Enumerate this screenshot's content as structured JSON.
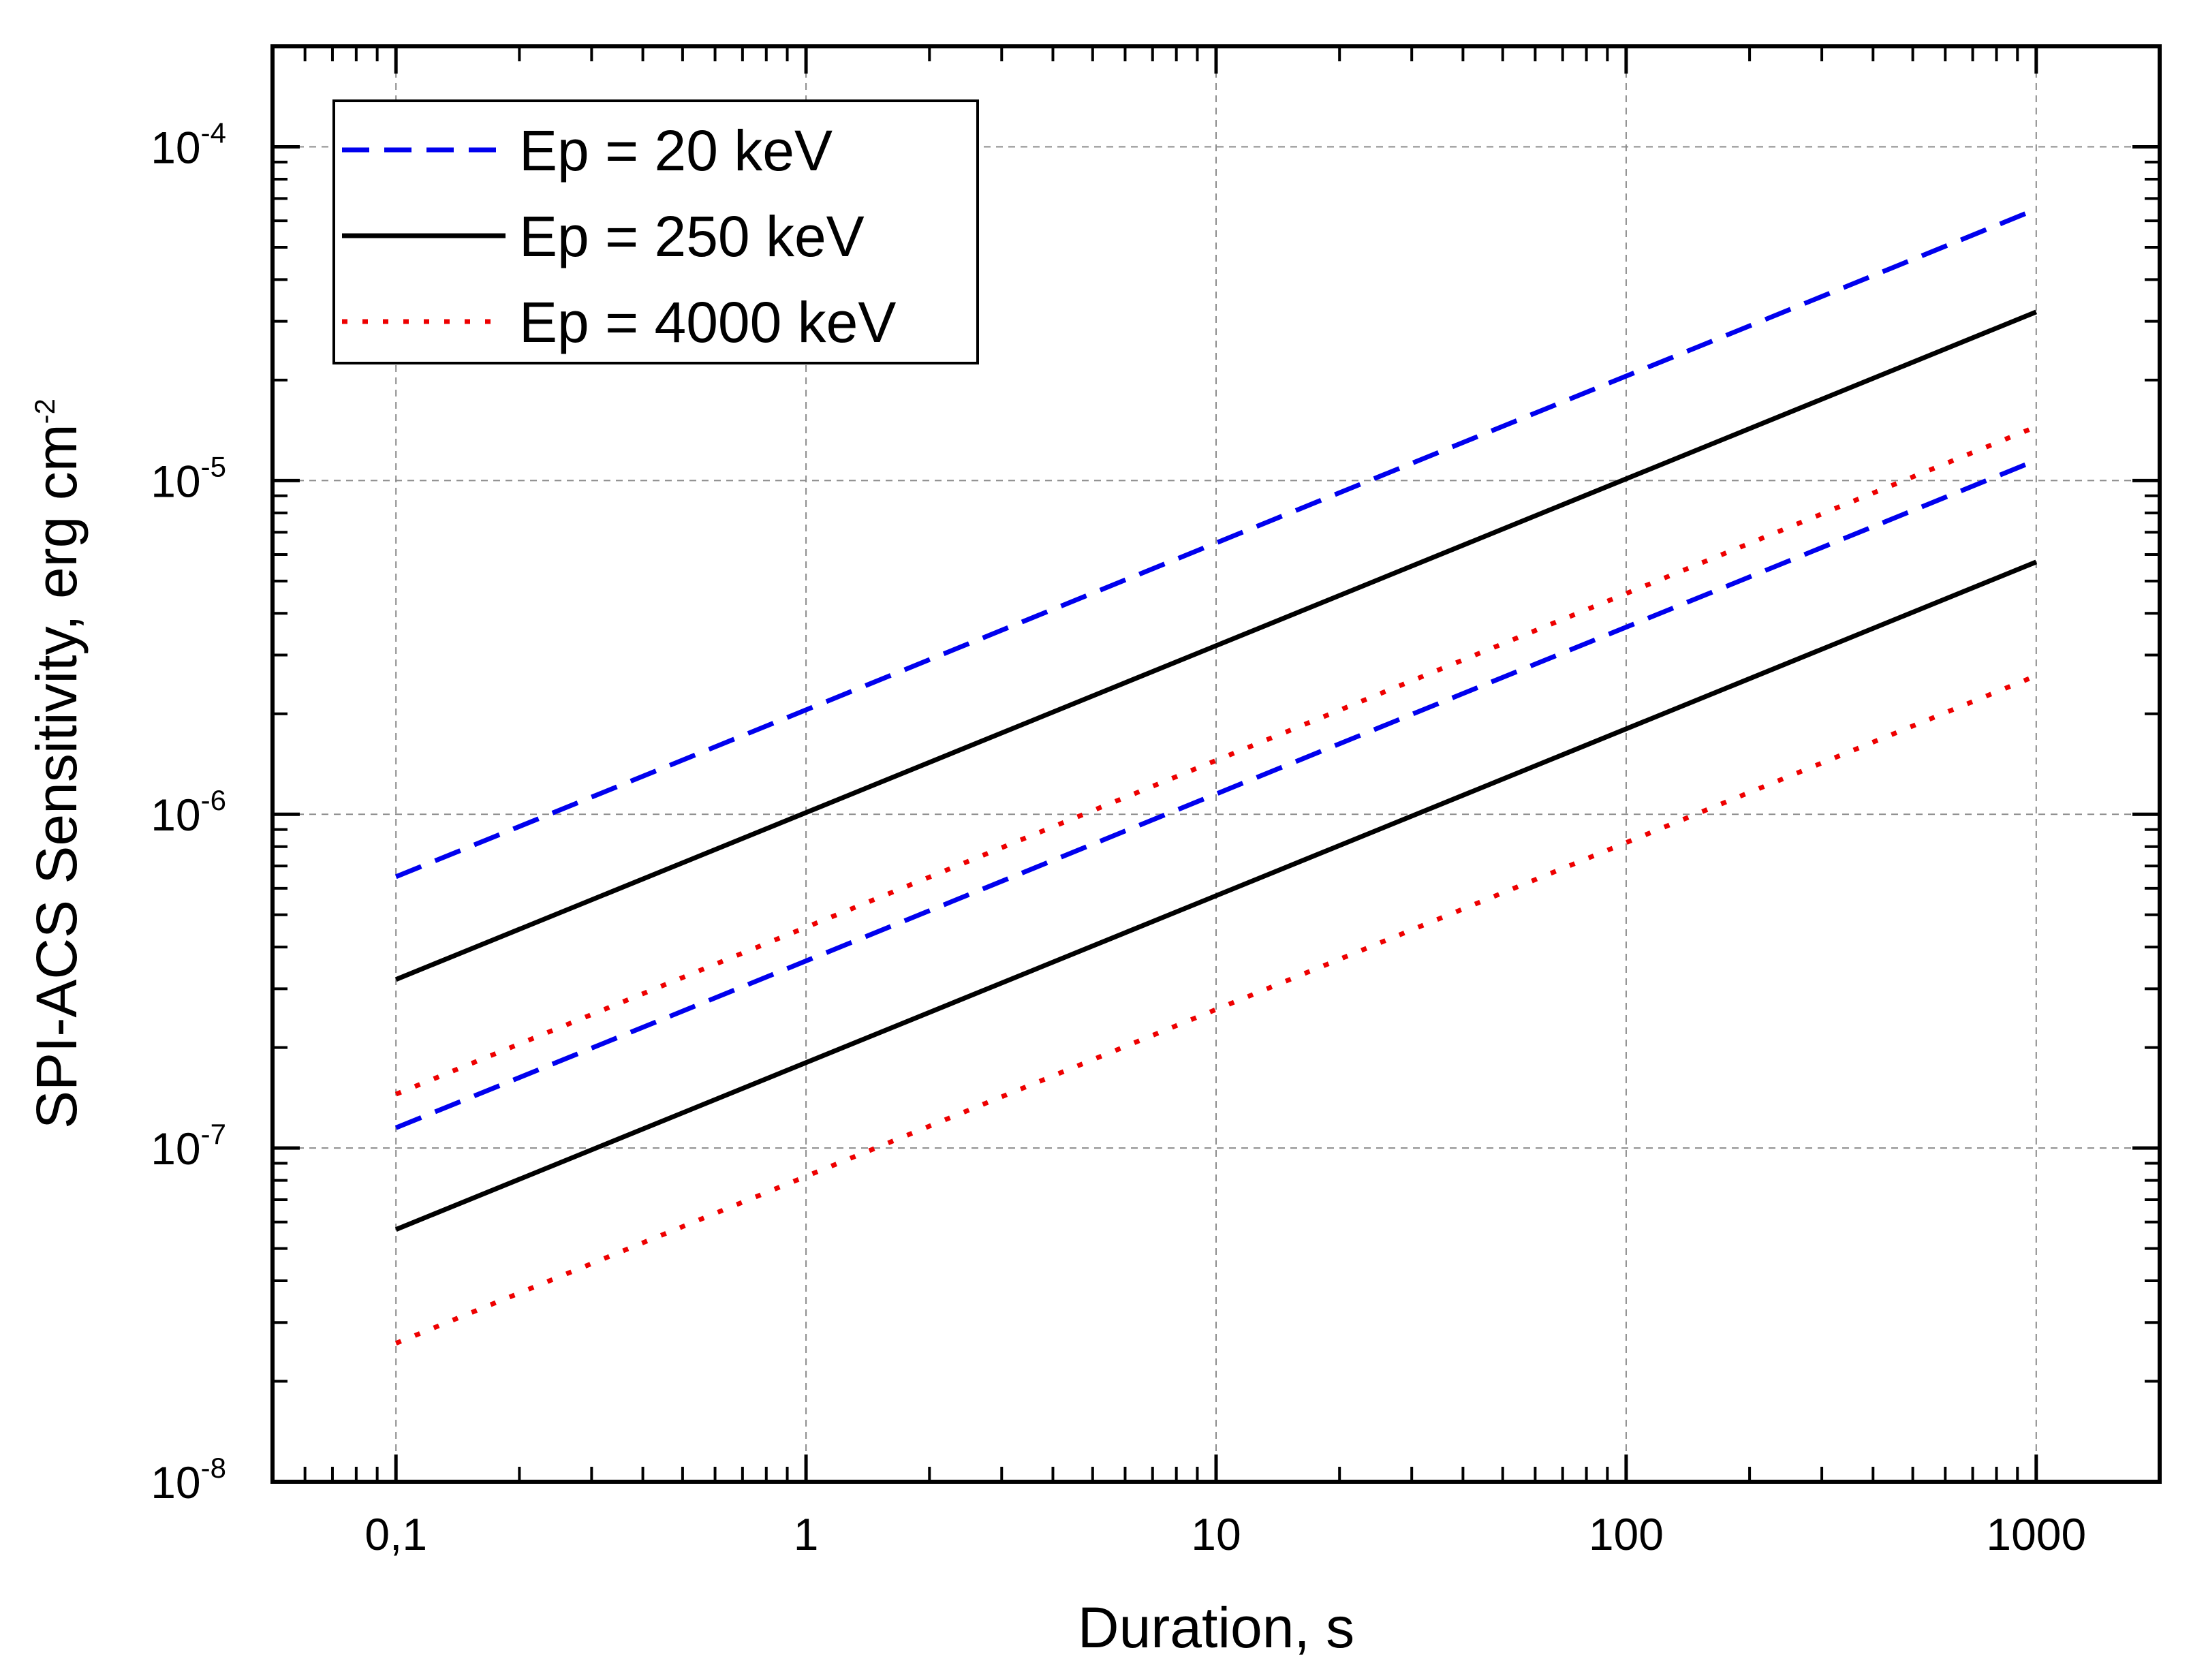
{
  "chart_data": {
    "type": "line",
    "title": "",
    "xlabel": "Duration, s",
    "ylabel": "SPI-ACS Sensitivity, erg cm",
    "ylabel_exponent": "-2",
    "x_scale": "log",
    "y_scale": "log",
    "xlim": [
      0.05,
      2000
    ],
    "ylim": [
      1e-08,
      0.0002
    ],
    "grid": true,
    "legend_position": "top-left",
    "x_ticks": [
      {
        "value": 0.1,
        "label": "0,1"
      },
      {
        "value": 1,
        "label": "1"
      },
      {
        "value": 10,
        "label": "10"
      },
      {
        "value": 100,
        "label": "100"
      },
      {
        "value": 1000,
        "label": "1000"
      }
    ],
    "y_ticks": [
      {
        "value": 1e-08,
        "base": "10",
        "exponent": "-8"
      },
      {
        "value": 1e-07,
        "base": "10",
        "exponent": "-7"
      },
      {
        "value": 1e-06,
        "base": "10",
        "exponent": "-6"
      },
      {
        "value": 1e-05,
        "base": "10",
        "exponent": "-5"
      },
      {
        "value": 0.0001,
        "base": "10",
        "exponent": "-4"
      }
    ],
    "legend": [
      {
        "label": "Ep = 20 keV",
        "color": "#0000ee",
        "style": "dashed"
      },
      {
        "label": "Ep = 250 keV",
        "color": "#000000",
        "style": "solid"
      },
      {
        "label": "Ep = 4000 keV",
        "color": "#ee0000",
        "style": "dotted"
      }
    ],
    "series": [
      {
        "name": "Ep = 20 keV (upper)",
        "color": "#0000ee",
        "style": "dashed",
        "x": [
          0.1,
          1000
        ],
        "y": [
          6.5e-07,
          6.5e-05
        ]
      },
      {
        "name": "Ep = 250 keV (upper)",
        "color": "#000000",
        "style": "solid",
        "x": [
          0.1,
          1000
        ],
        "y": [
          3.2e-07,
          3.2e-05
        ]
      },
      {
        "name": "Ep = 4000 keV (upper)",
        "color": "#ee0000",
        "style": "dotted",
        "x": [
          0.1,
          1000
        ],
        "y": [
          1.45e-07,
          1.45e-05
        ]
      },
      {
        "name": "Ep = 20 keV (lower)",
        "color": "#0000ee",
        "style": "dashed",
        "x": [
          0.1,
          1000
        ],
        "y": [
          1.15e-07,
          1.15e-05
        ]
      },
      {
        "name": "Ep = 250 keV (lower)",
        "color": "#000000",
        "style": "solid",
        "x": [
          0.1,
          1000
        ],
        "y": [
          5.7e-08,
          5.7e-06
        ]
      },
      {
        "name": "Ep = 4000 keV (lower)",
        "color": "#ee0000",
        "style": "dotted",
        "x": [
          0.1,
          1000
        ],
        "y": [
          2.6e-08,
          2.6e-06
        ]
      }
    ]
  }
}
